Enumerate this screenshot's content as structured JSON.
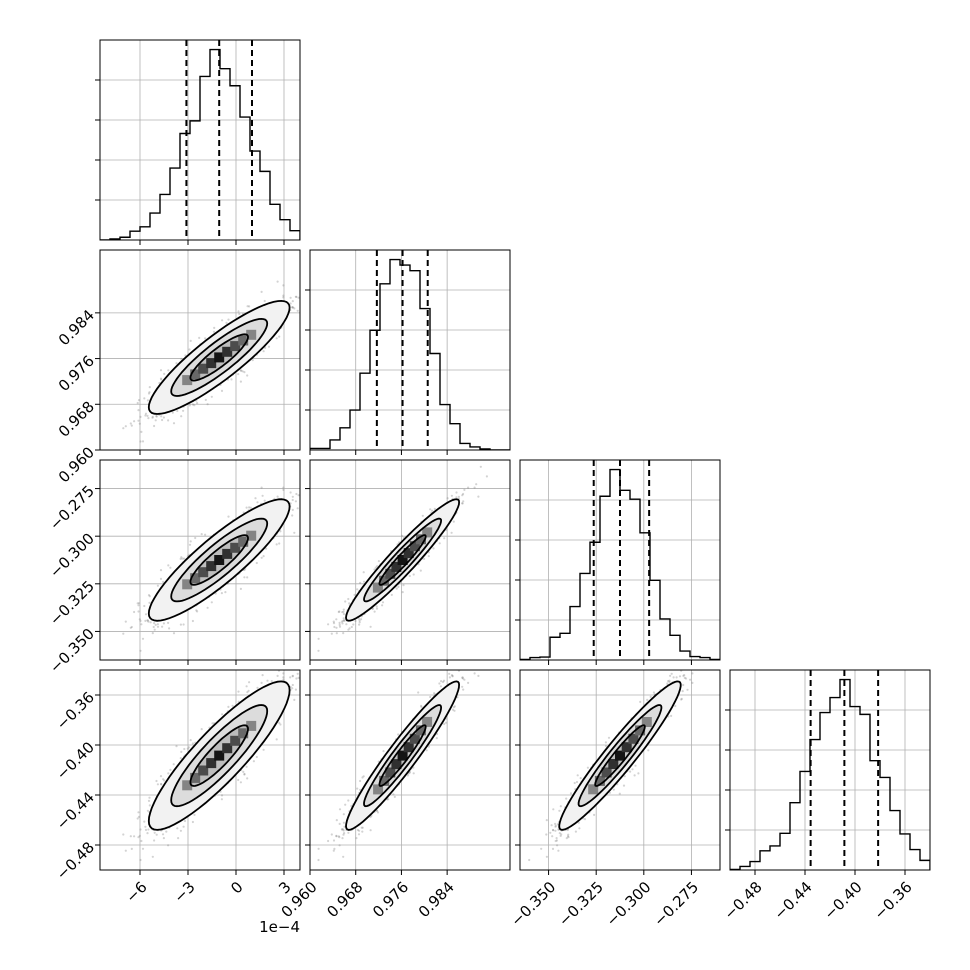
{
  "chart_data": {
    "type": "corner",
    "title": "",
    "parameters": [
      {
        "xlabel": "",
        "ylabel": "",
        "range": [
          -8.5,
          4.0
        ],
        "ticks": [
          -6,
          -3,
          0,
          3
        ],
        "tick_labels": [
          "−6",
          "−3",
          "0",
          "3"
        ],
        "offset_label": "1e−4",
        "quantiles": [
          -3.1,
          -1.05,
          1.0
        ],
        "median": -1.05,
        "sigma": 2.0
      },
      {
        "xlabel": "",
        "ylabel": "",
        "range": [
          0.96,
          0.995
        ],
        "ticks": [
          0.96,
          0.968,
          0.976,
          0.984
        ],
        "tick_labels": [
          "0.960",
          "0.968",
          "0.976",
          "0.984"
        ],
        "quantiles": [
          0.9717,
          0.9762,
          0.9806
        ],
        "median": 0.9762,
        "sigma": 0.0045
      },
      {
        "xlabel": "",
        "ylabel": "",
        "range": [
          -0.365,
          -0.26
        ],
        "ticks": [
          -0.35,
          -0.325,
          -0.3,
          -0.275
        ],
        "tick_labels": [
          "−0.350",
          "−0.325",
          "−0.300",
          "−0.275"
        ],
        "quantiles": [
          -0.3263,
          -0.3125,
          -0.2972
        ],
        "median": -0.3125,
        "sigma": 0.0145
      },
      {
        "xlabel": "",
        "ylabel": "",
        "range": [
          -0.5,
          -0.34
        ],
        "ticks": [
          -0.48,
          -0.44,
          -0.4,
          -0.36
        ],
        "tick_labels": [
          "−0.48",
          "−0.44",
          "−0.40",
          "−0.36"
        ],
        "quantiles": [
          -0.4355,
          -0.4085,
          -0.3815
        ],
        "median": -0.4085,
        "sigma": 0.027
      }
    ],
    "correlations": [
      [
        1,
        0.88,
        0.88,
        0.88
      ],
      [
        0.88,
        1,
        0.95,
        0.95
      ],
      [
        0.88,
        0.95,
        1,
        0.95
      ],
      [
        0.88,
        0.95,
        0.95,
        1
      ]
    ],
    "diagonal": "histogram",
    "off_diagonal": "2d-histogram-with-contours",
    "grid": true,
    "colors": {
      "line": "#000000",
      "points": "#808080",
      "grid": "#b0b0b0"
    }
  }
}
